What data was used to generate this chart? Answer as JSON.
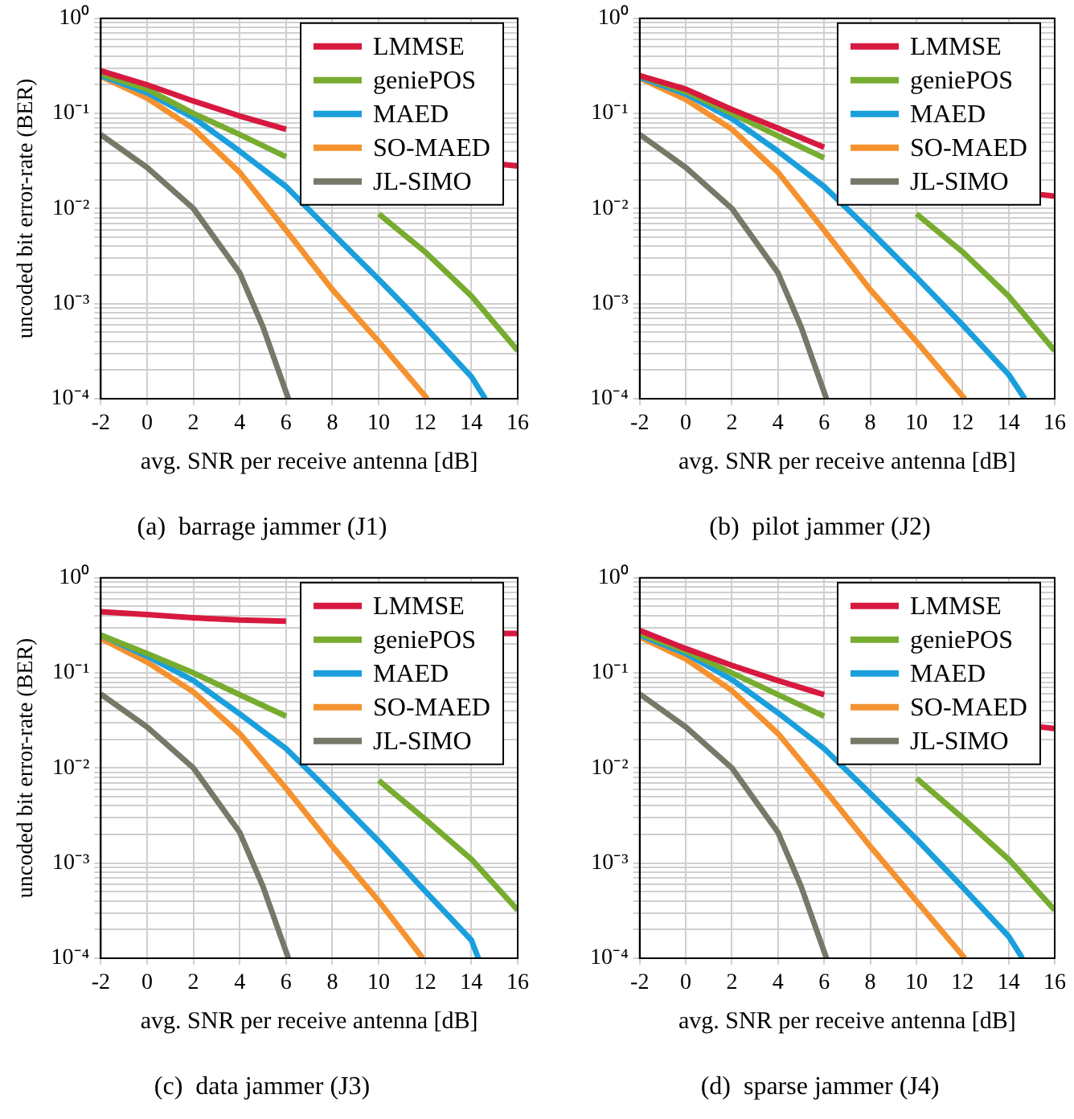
{
  "chart_data": [
    {
      "type": "line",
      "title": "(a)  barrage jammer (J1)",
      "xlabel": "avg. SNR per receive antenna [dB]",
      "ylabel": "uncoded bit error-rate (BER)",
      "log": "y",
      "grid": true,
      "legend": "top right",
      "marker": "none",
      "line_style": "solid",
      "xlim": [
        -2,
        16
      ],
      "xticks": [
        -2,
        0,
        2,
        4,
        6,
        8,
        10,
        12,
        14,
        16
      ],
      "ylim": [
        0.0001,
        1
      ],
      "yticks": [
        {
          "value": 0.0001,
          "label": "10⁻⁴"
        },
        {
          "value": 0.0002,
          "label": null
        },
        {
          "value": 0.0003,
          "label": null
        },
        {
          "value": 0.0004,
          "label": null
        },
        {
          "value": 0.0005,
          "label": null
        },
        {
          "value": 0.0006,
          "label": null
        },
        {
          "value": 0.0007,
          "label": null
        },
        {
          "value": 0.0008,
          "label": null
        },
        {
          "value": 0.0009,
          "label": null
        },
        {
          "value": 0.001,
          "label": "10⁻³"
        },
        {
          "value": 0.002,
          "label": null
        },
        {
          "value": 0.003,
          "label": null
        },
        {
          "value": 0.004,
          "label": null
        },
        {
          "value": 0.005,
          "label": null
        },
        {
          "value": 0.006,
          "label": null
        },
        {
          "value": 0.007,
          "label": null
        },
        {
          "value": 0.008,
          "label": null
        },
        {
          "value": 0.009,
          "label": null
        },
        {
          "value": 0.01,
          "label": "10⁻²"
        },
        {
          "value": 0.02,
          "label": null
        },
        {
          "value": 0.03,
          "label": null
        },
        {
          "value": 0.04,
          "label": null
        },
        {
          "value": 0.05,
          "label": null
        },
        {
          "value": 0.06,
          "label": null
        },
        {
          "value": 0.07,
          "label": null
        },
        {
          "value": 0.08,
          "label": null
        },
        {
          "value": 0.09,
          "label": null
        },
        {
          "value": 0.1,
          "label": "10⁻¹"
        },
        {
          "value": 0.2,
          "label": null
        },
        {
          "value": 0.3,
          "label": null
        },
        {
          "value": 0.4,
          "label": null
        },
        {
          "value": 0.5,
          "label": null
        },
        {
          "value": 0.6,
          "label": null
        },
        {
          "value": 0.7,
          "label": null
        },
        {
          "value": 0.8,
          "label": null
        },
        {
          "value": 0.9,
          "label": null
        },
        {
          "value": 1,
          "label": "10⁰"
        }
      ],
      "series": [
        {
          "name": "LMMSE",
          "color": "#d7193f",
          "x": [
            -2,
            0,
            2,
            4,
            6,
            11,
            15.4,
            16
          ],
          "values": [
            0.28,
            0.2,
            0.135,
            0.094,
            0.068,
            null,
            0.029,
            0.028
          ]
        },
        {
          "name": "geniePOS",
          "color": "#77ac30",
          "x": [
            -2,
            0,
            2,
            4,
            6,
            8,
            10,
            12,
            14,
            16
          ],
          "values": [
            0.26,
            0.18,
            0.1,
            0.06,
            0.035,
            null,
            0.0088,
            0.0035,
            0.0012,
            0.00032
          ]
        },
        {
          "name": "MAED",
          "color": "#1a9fdc",
          "x": [
            -2,
            0,
            2,
            4,
            6,
            8,
            10,
            12,
            14,
            14.6
          ],
          "values": [
            0.25,
            0.165,
            0.09,
            0.04,
            0.017,
            0.0055,
            0.0018,
            0.00057,
            0.00017,
            0.0001
          ]
        },
        {
          "name": "SO-MAED",
          "color": "#f5922f",
          "x": [
            -2,
            0,
            2,
            4,
            6,
            8,
            10,
            12.1
          ],
          "values": [
            0.245,
            0.145,
            0.069,
            0.024,
            0.0059,
            0.0014,
            0.0004,
            0.0001
          ]
        },
        {
          "name": "JL-SIMO",
          "color": "#777868",
          "x": [
            -2,
            0,
            2,
            4,
            5,
            6.1
          ],
          "values": [
            0.06,
            0.027,
            0.01,
            0.0021,
            0.00057,
            0.0001
          ]
        }
      ]
    },
    {
      "type": "line",
      "title": "(b)  pilot jammer (J2)",
      "xlabel": "avg. SNR per receive antenna [dB]",
      "log": "y",
      "grid": true,
      "legend": "top right",
      "marker": "none",
      "line_style": "solid",
      "xlim": [
        -2,
        16
      ],
      "xticks": [
        -2,
        0,
        2,
        4,
        6,
        8,
        10,
        12,
        14,
        16
      ],
      "ylim": [
        0.0001,
        1
      ],
      "yticks": [
        {
          "value": 0.0001,
          "label": "10⁻⁴"
        },
        {
          "value": 0.0002,
          "label": null
        },
        {
          "value": 0.0003,
          "label": null
        },
        {
          "value": 0.0004,
          "label": null
        },
        {
          "value": 0.0005,
          "label": null
        },
        {
          "value": 0.0006,
          "label": null
        },
        {
          "value": 0.0007,
          "label": null
        },
        {
          "value": 0.0008,
          "label": null
        },
        {
          "value": 0.0009,
          "label": null
        },
        {
          "value": 0.001,
          "label": "10⁻³"
        },
        {
          "value": 0.002,
          "label": null
        },
        {
          "value": 0.003,
          "label": null
        },
        {
          "value": 0.004,
          "label": null
        },
        {
          "value": 0.005,
          "label": null
        },
        {
          "value": 0.006,
          "label": null
        },
        {
          "value": 0.007,
          "label": null
        },
        {
          "value": 0.008,
          "label": null
        },
        {
          "value": 0.009,
          "label": null
        },
        {
          "value": 0.01,
          "label": "10⁻²"
        },
        {
          "value": 0.02,
          "label": null
        },
        {
          "value": 0.03,
          "label": null
        },
        {
          "value": 0.04,
          "label": null
        },
        {
          "value": 0.05,
          "label": null
        },
        {
          "value": 0.06,
          "label": null
        },
        {
          "value": 0.07,
          "label": null
        },
        {
          "value": 0.08,
          "label": null
        },
        {
          "value": 0.09,
          "label": null
        },
        {
          "value": 0.1,
          "label": "10⁻¹"
        },
        {
          "value": 0.2,
          "label": null
        },
        {
          "value": 0.3,
          "label": null
        },
        {
          "value": 0.4,
          "label": null
        },
        {
          "value": 0.5,
          "label": null
        },
        {
          "value": 0.6,
          "label": null
        },
        {
          "value": 0.7,
          "label": null
        },
        {
          "value": 0.8,
          "label": null
        },
        {
          "value": 0.9,
          "label": null
        },
        {
          "value": 1,
          "label": "10⁰"
        }
      ],
      "series": [
        {
          "name": "LMMSE",
          "color": "#d7193f",
          "x": [
            -2,
            0,
            2,
            4,
            6,
            11,
            15.4,
            16
          ],
          "values": [
            0.25,
            0.18,
            0.11,
            0.07,
            0.044,
            null,
            0.014,
            0.0135
          ]
        },
        {
          "name": "geniePOS",
          "color": "#77ac30",
          "x": [
            -2,
            0,
            2,
            4,
            6,
            8,
            10,
            12,
            14,
            16
          ],
          "values": [
            0.25,
            0.17,
            0.1,
            0.058,
            0.034,
            null,
            0.0088,
            0.0035,
            0.0012,
            0.00032
          ]
        },
        {
          "name": "MAED",
          "color": "#1a9fdc",
          "x": [
            -2,
            0,
            2,
            4,
            6,
            8,
            10,
            12,
            14,
            14.7
          ],
          "values": [
            0.24,
            0.16,
            0.088,
            0.04,
            0.017,
            0.0058,
            0.0019,
            0.0006,
            0.00018,
            0.0001
          ]
        },
        {
          "name": "SO-MAED",
          "color": "#f5922f",
          "x": [
            -2,
            0,
            2,
            4,
            6,
            8,
            10,
            12.1
          ],
          "values": [
            0.235,
            0.14,
            0.068,
            0.024,
            0.0059,
            0.0014,
            0.0004,
            0.0001
          ]
        },
        {
          "name": "JL-SIMO",
          "color": "#777868",
          "x": [
            -2,
            0,
            2,
            4,
            5,
            6.1
          ],
          "values": [
            0.06,
            0.027,
            0.01,
            0.0021,
            0.00057,
            0.0001
          ]
        }
      ]
    },
    {
      "type": "line",
      "title": "(c)  data jammer (J3)",
      "xlabel": "avg. SNR per receive antenna [dB]",
      "ylabel": "uncoded bit error-rate (BER)",
      "log": "y",
      "grid": true,
      "legend": "top right",
      "marker": "none",
      "line_style": "solid",
      "xlim": [
        -2,
        16
      ],
      "xticks": [
        -2,
        0,
        2,
        4,
        6,
        8,
        10,
        12,
        14,
        16
      ],
      "ylim": [
        0.0001,
        1
      ],
      "yticks": [
        {
          "value": 0.0001,
          "label": "10⁻⁴"
        },
        {
          "value": 0.0002,
          "label": null
        },
        {
          "value": 0.0003,
          "label": null
        },
        {
          "value": 0.0004,
          "label": null
        },
        {
          "value": 0.0005,
          "label": null
        },
        {
          "value": 0.0006,
          "label": null
        },
        {
          "value": 0.0007,
          "label": null
        },
        {
          "value": 0.0008,
          "label": null
        },
        {
          "value": 0.0009,
          "label": null
        },
        {
          "value": 0.001,
          "label": "10⁻³"
        },
        {
          "value": 0.002,
          "label": null
        },
        {
          "value": 0.003,
          "label": null
        },
        {
          "value": 0.004,
          "label": null
        },
        {
          "value": 0.005,
          "label": null
        },
        {
          "value": 0.006,
          "label": null
        },
        {
          "value": 0.007,
          "label": null
        },
        {
          "value": 0.008,
          "label": null
        },
        {
          "value": 0.009,
          "label": null
        },
        {
          "value": 0.01,
          "label": "10⁻²"
        },
        {
          "value": 0.02,
          "label": null
        },
        {
          "value": 0.03,
          "label": null
        },
        {
          "value": 0.04,
          "label": null
        },
        {
          "value": 0.05,
          "label": null
        },
        {
          "value": 0.06,
          "label": null
        },
        {
          "value": 0.07,
          "label": null
        },
        {
          "value": 0.08,
          "label": null
        },
        {
          "value": 0.09,
          "label": null
        },
        {
          "value": 0.1,
          "label": "10⁻¹"
        },
        {
          "value": 0.2,
          "label": null
        },
        {
          "value": 0.3,
          "label": null
        },
        {
          "value": 0.4,
          "label": null
        },
        {
          "value": 0.5,
          "label": null
        },
        {
          "value": 0.6,
          "label": null
        },
        {
          "value": 0.7,
          "label": null
        },
        {
          "value": 0.8,
          "label": null
        },
        {
          "value": 0.9,
          "label": null
        },
        {
          "value": 1,
          "label": "10⁰"
        }
      ],
      "series": [
        {
          "name": "LMMSE",
          "color": "#d7193f",
          "x": [
            -2,
            0,
            2,
            4,
            6,
            11,
            15.4,
            16
          ],
          "values": [
            0.44,
            0.41,
            0.38,
            0.36,
            0.35,
            null,
            0.26,
            0.26
          ]
        },
        {
          "name": "geniePOS",
          "color": "#77ac30",
          "x": [
            -2,
            0,
            2,
            4,
            6,
            8,
            10,
            12,
            14,
            16
          ],
          "values": [
            0.25,
            0.16,
            0.1,
            0.059,
            0.035,
            null,
            0.0074,
            0.0029,
            0.0011,
            0.00032
          ]
        },
        {
          "name": "MAED",
          "color": "#1a9fdc",
          "x": [
            -2,
            0,
            2,
            4,
            6,
            8,
            10,
            12,
            14,
            14.3
          ],
          "values": [
            0.25,
            0.15,
            0.083,
            0.037,
            0.016,
            0.0053,
            0.0017,
            0.00051,
            0.000155,
            0.0001
          ]
        },
        {
          "name": "SO-MAED",
          "color": "#f5922f",
          "x": [
            -2,
            0,
            2,
            4,
            6,
            8,
            10,
            11.9
          ],
          "values": [
            0.23,
            0.13,
            0.063,
            0.023,
            0.0061,
            0.0015,
            0.0004,
            0.0001
          ]
        },
        {
          "name": "JL-SIMO",
          "color": "#777868",
          "x": [
            -2,
            0,
            2,
            4,
            5,
            6.1
          ],
          "values": [
            0.06,
            0.027,
            0.01,
            0.0021,
            0.00057,
            0.0001
          ]
        }
      ]
    },
    {
      "type": "line",
      "title": "(d)  sparse jammer (J4)",
      "xlabel": "avg. SNR per receive antenna [dB]",
      "log": "y",
      "grid": true,
      "legend": "top right",
      "marker": "none",
      "line_style": "solid",
      "xlim": [
        -2,
        16
      ],
      "xticks": [
        -2,
        0,
        2,
        4,
        6,
        8,
        10,
        12,
        14,
        16
      ],
      "ylim": [
        0.0001,
        1
      ],
      "yticks": [
        {
          "value": 0.0001,
          "label": "10⁻⁴"
        },
        {
          "value": 0.0002,
          "label": null
        },
        {
          "value": 0.0003,
          "label": null
        },
        {
          "value": 0.0004,
          "label": null
        },
        {
          "value": 0.0005,
          "label": null
        },
        {
          "value": 0.0006,
          "label": null
        },
        {
          "value": 0.0007,
          "label": null
        },
        {
          "value": 0.0008,
          "label": null
        },
        {
          "value": 0.0009,
          "label": null
        },
        {
          "value": 0.001,
          "label": "10⁻³"
        },
        {
          "value": 0.002,
          "label": null
        },
        {
          "value": 0.003,
          "label": null
        },
        {
          "value": 0.004,
          "label": null
        },
        {
          "value": 0.005,
          "label": null
        },
        {
          "value": 0.006,
          "label": null
        },
        {
          "value": 0.007,
          "label": null
        },
        {
          "value": 0.008,
          "label": null
        },
        {
          "value": 0.009,
          "label": null
        },
        {
          "value": 0.01,
          "label": "10⁻²"
        },
        {
          "value": 0.02,
          "label": null
        },
        {
          "value": 0.03,
          "label": null
        },
        {
          "value": 0.04,
          "label": null
        },
        {
          "value": 0.05,
          "label": null
        },
        {
          "value": 0.06,
          "label": null
        },
        {
          "value": 0.07,
          "label": null
        },
        {
          "value": 0.08,
          "label": null
        },
        {
          "value": 0.09,
          "label": null
        },
        {
          "value": 0.1,
          "label": "10⁻¹"
        },
        {
          "value": 0.2,
          "label": null
        },
        {
          "value": 0.3,
          "label": null
        },
        {
          "value": 0.4,
          "label": null
        },
        {
          "value": 0.5,
          "label": null
        },
        {
          "value": 0.6,
          "label": null
        },
        {
          "value": 0.7,
          "label": null
        },
        {
          "value": 0.8,
          "label": null
        },
        {
          "value": 0.9,
          "label": null
        },
        {
          "value": 1,
          "label": "10⁰"
        }
      ],
      "series": [
        {
          "name": "LMMSE",
          "color": "#d7193f",
          "x": [
            -2,
            0,
            2,
            4,
            6,
            11,
            15.4,
            16
          ],
          "values": [
            0.28,
            0.18,
            0.12,
            0.083,
            0.059,
            null,
            0.027,
            0.026
          ]
        },
        {
          "name": "geniePOS",
          "color": "#77ac30",
          "x": [
            -2,
            0,
            2,
            4,
            6,
            8,
            10,
            12,
            14,
            16
          ],
          "values": [
            0.26,
            0.17,
            0.1,
            0.059,
            0.035,
            null,
            0.0078,
            0.003,
            0.0011,
            0.00032
          ]
        },
        {
          "name": "MAED",
          "color": "#1a9fdc",
          "x": [
            -2,
            0,
            2,
            4,
            6,
            8,
            10,
            12,
            14,
            14.6
          ],
          "values": [
            0.25,
            0.16,
            0.085,
            0.038,
            0.016,
            0.0054,
            0.0018,
            0.00056,
            0.00017,
            0.0001
          ]
        },
        {
          "name": "SO-MAED",
          "color": "#f5922f",
          "x": [
            -2,
            0,
            2,
            4,
            6,
            8,
            10,
            12.1
          ],
          "values": [
            0.24,
            0.14,
            0.065,
            0.023,
            0.006,
            0.0015,
            0.0004,
            0.0001
          ]
        },
        {
          "name": "JL-SIMO",
          "color": "#777868",
          "x": [
            -2,
            0,
            2,
            4,
            5,
            6.1
          ],
          "values": [
            0.06,
            0.027,
            0.01,
            0.0021,
            0.00057,
            0.0001
          ]
        }
      ]
    }
  ]
}
